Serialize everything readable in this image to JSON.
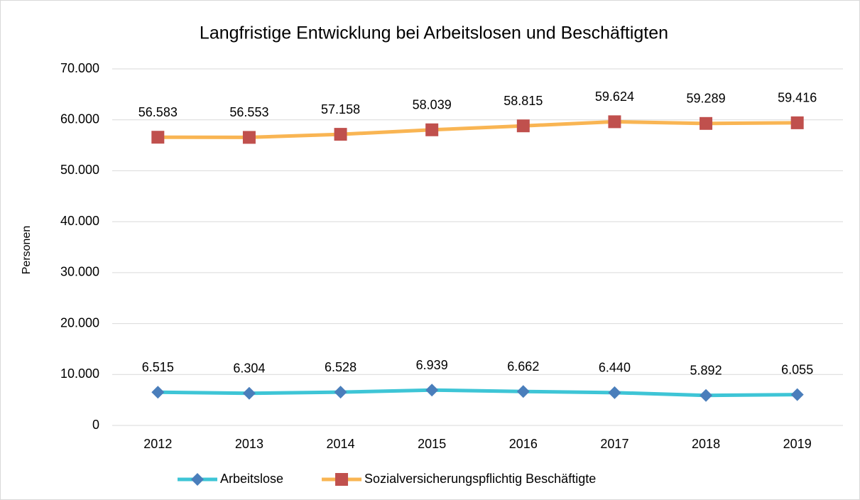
{
  "chart_data": {
    "type": "line",
    "title": "Langfristige Entwicklung bei Arbeitslosen und Beschäftigten",
    "y_label": "Personen",
    "categories": [
      "2012",
      "2013",
      "2014",
      "2015",
      "2016",
      "2017",
      "2018",
      "2019"
    ],
    "series": [
      {
        "name": "Arbeitslose",
        "color": "#3ec5d6",
        "marker_color": "#4a7ebb",
        "marker": "diamond",
        "values": [
          6515,
          6304,
          6528,
          6939,
          6662,
          6440,
          5892,
          6055
        ],
        "value_labels": [
          "6.515",
          "6.304",
          "6.528",
          "6.939",
          "6.662",
          "6.440",
          "5.892",
          "6.055"
        ]
      },
      {
        "name": "Sozialversicherungspflichtig Beschäftigte",
        "color": "#f9b553",
        "marker_color": "#c0504d",
        "marker": "square",
        "values": [
          56583,
          56553,
          57158,
          58039,
          58815,
          59624,
          59289,
          59416
        ],
        "value_labels": [
          "56.583",
          "56.553",
          "57.158",
          "58.039",
          "58.815",
          "59.624",
          "59.289",
          "59.416"
        ]
      }
    ],
    "ylim": [
      0,
      70000
    ],
    "yticks": [
      0,
      {
        "value": 10000,
        "label": "10.000"
      },
      {
        "value": 20000,
        "label": "20.000"
      },
      {
        "value": 30000,
        "label": "30.000"
      },
      {
        "value": 40000,
        "label": "40.000"
      },
      {
        "value": 50000,
        "label": "50.000"
      },
      {
        "value": 60000,
        "label": "60.000"
      },
      {
        "value": 70000,
        "label": "70.000"
      }
    ],
    "grid": true,
    "legend": "bottom"
  }
}
